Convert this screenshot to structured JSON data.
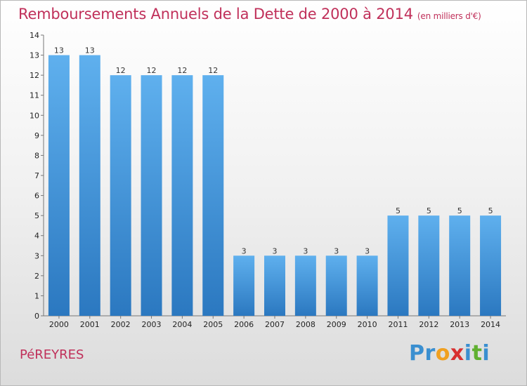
{
  "header": {
    "title": "Remboursements Annuels de la Dette de 2000 à 2014",
    "unit": "(en milliers d'€)"
  },
  "footer": {
    "commune": "PéREYRES",
    "logo_parts": [
      "Pr",
      "o",
      "x",
      "i",
      "t",
      "i"
    ]
  },
  "colors": {
    "bar": "#3f8fd6",
    "bar_light": "#5fb0ee",
    "title": "#c0305a"
  },
  "chart_data": {
    "type": "bar",
    "title": "Remboursements Annuels de la Dette de 2000 à 2014",
    "xlabel": "",
    "ylabel": "",
    "ylim": [
      0,
      14
    ],
    "yticks": [
      0,
      1,
      2,
      3,
      4,
      5,
      6,
      7,
      8,
      9,
      10,
      11,
      12,
      13,
      14
    ],
    "categories": [
      "2000",
      "2001",
      "2002",
      "2003",
      "2004",
      "2005",
      "2006",
      "2007",
      "2008",
      "2009",
      "2010",
      "2011",
      "2012",
      "2013",
      "2014"
    ],
    "values": [
      13,
      13,
      12,
      12,
      12,
      12,
      3,
      3,
      3,
      3,
      3,
      5,
      5,
      5,
      5
    ],
    "grid": false,
    "legend": "none"
  }
}
